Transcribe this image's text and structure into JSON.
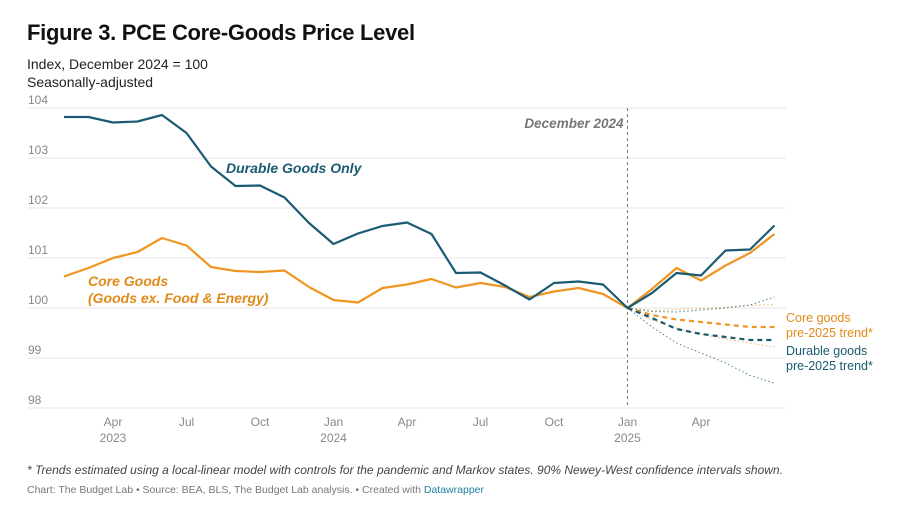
{
  "title": "Figure 3. PCE Core-Goods Price Level",
  "subtitle_line1": "Index, December 2024 = 100",
  "subtitle_line2": "Seasonally-adjusted",
  "footnote": "* Trends estimated using a local-linear model with controls for the pandemic and Markov states. 90% Newey-West confidence intervals shown.",
  "source_prefix": "Chart: The Budget Lab • Source: BEA, BLS, The Budget Lab analysis. • Created with ",
  "source_link": "Datawrapper",
  "colors": {
    "durable": "#1a5b73",
    "core": "#f09521",
    "core_label": "#e08a19",
    "grid": "#e6e6e6",
    "axis_text": "#888888",
    "marker": "#777777"
  },
  "chart_data": {
    "type": "line",
    "ylim": [
      98,
      104
    ],
    "yticks": [
      98,
      99,
      100,
      101,
      102,
      103,
      104
    ],
    "xlim": [
      0,
      30
    ],
    "xticks": [
      {
        "x": 2,
        "label": "Apr",
        "sublabel": "2023"
      },
      {
        "x": 5,
        "label": "Jul",
        "sublabel": ""
      },
      {
        "x": 8,
        "label": "Oct",
        "sublabel": ""
      },
      {
        "x": 11,
        "label": "Jan",
        "sublabel": "2024"
      },
      {
        "x": 14,
        "label": "Apr",
        "sublabel": ""
      },
      {
        "x": 17,
        "label": "Jul",
        "sublabel": ""
      },
      {
        "x": 20,
        "label": "Oct",
        "sublabel": ""
      },
      {
        "x": 23,
        "label": "Jan",
        "sublabel": "2025"
      },
      {
        "x": 26,
        "label": "Apr",
        "sublabel": ""
      }
    ],
    "reference_line": {
      "x": 23,
      "label": "December 2024"
    },
    "series": [
      {
        "name": "Durable Goods Only",
        "style": "solid",
        "color": "durable",
        "x": [
          0,
          1,
          2,
          3,
          4,
          5,
          6,
          7,
          8,
          9,
          10,
          11,
          12,
          13,
          14,
          15,
          16,
          17,
          18,
          19,
          20,
          21,
          22,
          23,
          24,
          25,
          26,
          27,
          28,
          29
        ],
        "y": [
          103.82,
          103.82,
          103.71,
          103.73,
          103.86,
          103.5,
          102.83,
          102.44,
          102.45,
          102.21,
          101.7,
          101.28,
          101.49,
          101.64,
          101.71,
          101.48,
          100.7,
          100.71,
          100.45,
          100.17,
          100.5,
          100.53,
          100.47,
          100.0,
          100.3,
          100.7,
          100.65,
          101.15,
          101.17,
          101.65
        ]
      },
      {
        "name": "Core Goods (Goods ex. Food & Energy)",
        "style": "solid",
        "color": "core",
        "x": [
          0,
          1,
          2,
          3,
          4,
          5,
          6,
          7,
          8,
          9,
          10,
          11,
          12,
          13,
          14,
          15,
          16,
          17,
          18,
          19,
          20,
          21,
          22,
          23,
          24,
          25,
          26,
          27,
          28,
          29
        ],
        "y": [
          100.63,
          100.8,
          101.0,
          101.12,
          101.4,
          101.25,
          100.82,
          100.74,
          100.72,
          100.75,
          100.42,
          100.16,
          100.11,
          100.4,
          100.47,
          100.58,
          100.41,
          100.5,
          100.42,
          100.22,
          100.33,
          100.4,
          100.28,
          100.0,
          100.38,
          100.8,
          100.55,
          100.85,
          101.1,
          101.48
        ]
      },
      {
        "name": "Core goods pre-2025 trend",
        "style": "dashed",
        "color": "core",
        "x": [
          23,
          24,
          25,
          26,
          27,
          28,
          29
        ],
        "y": [
          100.0,
          99.86,
          99.77,
          99.72,
          99.67,
          99.62,
          99.62
        ]
      },
      {
        "name": "Core goods upper CI",
        "style": "dotted",
        "color": "core",
        "x": [
          23,
          24,
          25,
          26,
          27,
          28,
          29
        ],
        "y": [
          100.0,
          99.95,
          99.97,
          99.99,
          100.02,
          100.05,
          100.07
        ]
      },
      {
        "name": "Core goods lower CI",
        "style": "dotted",
        "color": "core",
        "x": [
          23,
          24,
          25,
          26,
          27,
          28,
          29
        ],
        "y": [
          100.0,
          99.76,
          99.6,
          99.48,
          99.38,
          99.3,
          99.22
        ]
      },
      {
        "name": "Durable goods pre-2025 trend",
        "style": "dashed",
        "color": "durable",
        "x": [
          23,
          24,
          25,
          26,
          27,
          28,
          29
        ],
        "y": [
          100.0,
          99.8,
          99.58,
          99.48,
          99.42,
          99.36,
          99.36
        ]
      },
      {
        "name": "Durable goods upper CI",
        "style": "dotted",
        "color": "durable",
        "x": [
          23,
          24,
          25,
          26,
          27,
          28,
          29
        ],
        "y": [
          100.0,
          99.93,
          99.92,
          99.96,
          100.0,
          100.06,
          100.22
        ]
      },
      {
        "name": "Durable goods lower CI",
        "style": "dotted",
        "color": "durable",
        "x": [
          23,
          24,
          25,
          26,
          27,
          28,
          29
        ],
        "y": [
          100.0,
          99.62,
          99.3,
          99.1,
          98.9,
          98.65,
          98.5
        ]
      }
    ],
    "annotations": [
      {
        "text": "Durable Goods Only",
        "color": "durable"
      },
      {
        "text": "Core Goods",
        "color": "core_label"
      },
      {
        "text": "(Goods ex. Food & Energy)",
        "color": "core_label"
      },
      {
        "text": "Core goods",
        "color": "core_label"
      },
      {
        "text": "pre-2025 trend*",
        "color": "core_label"
      },
      {
        "text": "Durable goods",
        "color": "durable"
      },
      {
        "text": "pre-2025 trend*",
        "color": "durable"
      }
    ]
  }
}
